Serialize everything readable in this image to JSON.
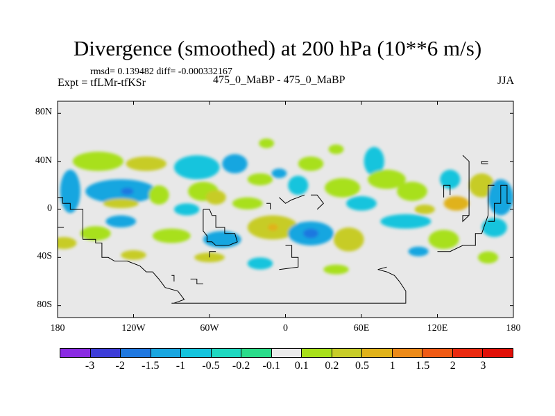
{
  "chart_data": {
    "type": "heatmap",
    "title": "Divergence (smoothed) at 200 hPa (10**6 m/s)",
    "stats": "rmsd= 0.139482 diff= -0.000332167",
    "left_label": "Expt = tfLMr-tfKSr",
    "center_label": "475_0_MaBP - 475_0_MaBP",
    "right_label": "JJA",
    "x_range": [
      -180,
      180
    ],
    "y_range": [
      -90,
      90
    ],
    "x_ticks": [
      {
        "value": -180,
        "label": "180"
      },
      {
        "value": -120,
        "label": "120W"
      },
      {
        "value": -60,
        "label": "60W"
      },
      {
        "value": 0,
        "label": "0"
      },
      {
        "value": 60,
        "label": "60E"
      },
      {
        "value": 120,
        "label": "120E"
      },
      {
        "value": 180,
        "label": "180"
      }
    ],
    "y_ticks": [
      {
        "value": 80,
        "label": "80N"
      },
      {
        "value": 40,
        "label": "40N"
      },
      {
        "value": 0,
        "label": "0"
      },
      {
        "value": -40,
        "label": "40S"
      },
      {
        "value": -80,
        "label": "80S"
      }
    ],
    "background_color": "#e8e8e8",
    "colorbar": {
      "labels": [
        "-3",
        "-2",
        "-1.5",
        "-1",
        "-0.5",
        "-0.2",
        "-0.1",
        "0.1",
        "0.2",
        "0.5",
        "1",
        "1.5",
        "2",
        "3"
      ],
      "colors": [
        "#8a2be2",
        "#3d3dd8",
        "#1f78e0",
        "#19a6e0",
        "#14c4dd",
        "#1ed8c0",
        "#2adc8a",
        "#ebebeb",
        "#a8e01a",
        "#c7cc28",
        "#e0b21a",
        "#ec8a18",
        "#ef5a14",
        "#ea2a10",
        "#e01008"
      ]
    },
    "features": [
      {
        "lon": -170,
        "lat": 15,
        "rlon": 8,
        "rlat": 18,
        "cls": 3
      },
      {
        "lon": -175,
        "lat": -28,
        "rlon": 10,
        "rlat": 5,
        "cls": 9
      },
      {
        "lon": -150,
        "lat": -20,
        "rlon": 12,
        "rlat": 6,
        "cls": 8
      },
      {
        "lon": -148,
        "lat": 40,
        "rlon": 20,
        "rlat": 8,
        "cls": 8
      },
      {
        "lon": -130,
        "lat": 15,
        "rlon": 28,
        "rlat": 10,
        "cls": 3
      },
      {
        "lon": -125,
        "lat": 15,
        "rlon": 5,
        "rlat": 3,
        "cls": 2
      },
      {
        "lon": -130,
        "lat": -10,
        "rlon": 12,
        "rlat": 5,
        "cls": 3
      },
      {
        "lon": -110,
        "lat": 38,
        "rlon": 16,
        "rlat": 6,
        "cls": 9
      },
      {
        "lon": -100,
        "lat": 12,
        "rlon": 8,
        "rlat": 8,
        "cls": 8
      },
      {
        "lon": -90,
        "lat": -22,
        "rlon": 15,
        "rlat": 6,
        "cls": 8
      },
      {
        "lon": -70,
        "lat": 35,
        "rlon": 18,
        "rlat": 10,
        "cls": 4
      },
      {
        "lon": -65,
        "lat": 15,
        "rlon": 12,
        "rlat": 8,
        "cls": 8
      },
      {
        "lon": -55,
        "lat": 10,
        "rlon": 8,
        "rlat": 6,
        "cls": 9
      },
      {
        "lon": -78,
        "lat": 0,
        "rlon": 10,
        "rlat": 5,
        "cls": 4
      },
      {
        "lon": -40,
        "lat": 38,
        "rlon": 10,
        "rlat": 8,
        "cls": 3
      },
      {
        "lon": -30,
        "lat": 5,
        "rlon": 12,
        "rlat": 5,
        "cls": 8
      },
      {
        "lon": -20,
        "lat": 25,
        "rlon": 10,
        "rlat": 5,
        "cls": 8
      },
      {
        "lon": -50,
        "lat": -25,
        "rlon": 15,
        "rlat": 7,
        "cls": 3
      },
      {
        "lon": -10,
        "lat": -15,
        "rlon": 20,
        "rlat": 10,
        "cls": 9
      },
      {
        "lon": -10,
        "lat": -15,
        "rlon": 4,
        "rlat": 3,
        "cls": 10
      },
      {
        "lon": -20,
        "lat": -45,
        "rlon": 10,
        "rlat": 5,
        "cls": 4
      },
      {
        "lon": 10,
        "lat": 20,
        "rlon": 8,
        "rlat": 8,
        "cls": 4
      },
      {
        "lon": 20,
        "lat": -20,
        "rlon": 18,
        "rlat": 10,
        "cls": 3
      },
      {
        "lon": 20,
        "lat": -20,
        "rlon": 6,
        "rlat": 4,
        "cls": 2
      },
      {
        "lon": 20,
        "lat": 38,
        "rlon": 10,
        "rlat": 6,
        "cls": 8
      },
      {
        "lon": 45,
        "lat": 18,
        "rlon": 14,
        "rlat": 8,
        "cls": 8
      },
      {
        "lon": 50,
        "lat": -25,
        "rlon": 12,
        "rlat": 10,
        "cls": 9
      },
      {
        "lon": 60,
        "lat": 5,
        "rlon": 12,
        "rlat": 6,
        "cls": 4
      },
      {
        "lon": 70,
        "lat": 40,
        "rlon": 8,
        "rlat": 12,
        "cls": 4
      },
      {
        "lon": 80,
        "lat": 25,
        "rlon": 15,
        "rlat": 8,
        "cls": 8
      },
      {
        "lon": 95,
        "lat": -10,
        "rlon": 20,
        "rlat": 6,
        "cls": 4
      },
      {
        "lon": 100,
        "lat": 15,
        "rlon": 12,
        "rlat": 8,
        "cls": 8
      },
      {
        "lon": 110,
        "lat": 0,
        "rlon": 8,
        "rlat": 4,
        "cls": 9
      },
      {
        "lon": 125,
        "lat": -25,
        "rlon": 12,
        "rlat": 8,
        "cls": 8
      },
      {
        "lon": 130,
        "lat": 25,
        "rlon": 8,
        "rlat": 8,
        "cls": 4
      },
      {
        "lon": 135,
        "lat": 5,
        "rlon": 10,
        "rlat": 6,
        "cls": 10
      },
      {
        "lon": 155,
        "lat": 20,
        "rlon": 10,
        "rlat": 10,
        "cls": 9
      },
      {
        "lon": 170,
        "lat": 10,
        "rlon": 10,
        "rlat": 15,
        "cls": 3
      },
      {
        "lon": 165,
        "lat": -15,
        "rlon": 10,
        "rlat": 8,
        "cls": 4
      },
      {
        "lon": 160,
        "lat": -40,
        "rlon": 8,
        "rlat": 5,
        "cls": 8
      },
      {
        "lon": 40,
        "lat": -50,
        "rlon": 10,
        "rlat": 4,
        "cls": 8
      },
      {
        "lon": -60,
        "lat": -40,
        "rlon": 12,
        "rlat": 4,
        "cls": 9
      },
      {
        "lon": -120,
        "lat": -38,
        "rlon": 10,
        "rlat": 4,
        "cls": 9
      },
      {
        "lon": -15,
        "lat": 55,
        "rlon": 6,
        "rlat": 4,
        "cls": 8
      },
      {
        "lon": 40,
        "lat": 50,
        "rlon": 6,
        "rlat": 4,
        "cls": 8
      },
      {
        "lon": -130,
        "lat": 5,
        "rlon": 14,
        "rlat": 4,
        "cls": 9
      },
      {
        "lon": -5,
        "lat": 30,
        "rlon": 6,
        "rlat": 4,
        "cls": 3
      },
      {
        "lon": 105,
        "lat": -35,
        "rlon": 8,
        "rlat": 4,
        "cls": 3
      }
    ],
    "coastlines": [
      [
        [
          -180,
          10
        ],
        [
          -176,
          10
        ],
        [
          -176,
          5
        ],
        [
          -170,
          5
        ],
        [
          -170,
          0
        ],
        [
          -160,
          0
        ],
        [
          -160,
          -25
        ],
        [
          -150,
          -25
        ],
        [
          -150,
          -28
        ],
        [
          -145,
          -28
        ],
        [
          -145,
          -40
        ],
        [
          -140,
          -40
        ],
        [
          -135,
          -43
        ],
        [
          -125,
          -43
        ],
        [
          -115,
          -47
        ],
        [
          -110,
          -52
        ],
        [
          -105,
          -52
        ],
        [
          -100,
          -58
        ],
        [
          -95,
          -65
        ],
        [
          -85,
          -68
        ],
        [
          -80,
          -75
        ],
        [
          -88,
          -78
        ]
      ],
      [
        [
          -90,
          -78
        ],
        [
          95,
          -78
        ],
        [
          95,
          -68
        ],
        [
          90,
          -60
        ],
        [
          86,
          -55
        ],
        [
          80,
          -52
        ],
        [
          73,
          -50
        ]
      ],
      [
        [
          73,
          -50
        ],
        [
          80,
          -48
        ]
      ],
      [
        [
          -65,
          0
        ],
        [
          -60,
          0
        ],
        [
          -58,
          -5
        ],
        [
          -55,
          -5
        ],
        [
          -55,
          -15
        ],
        [
          -48,
          -15
        ],
        [
          -48,
          -20
        ],
        [
          -40,
          -20
        ],
        [
          -38,
          -27
        ],
        [
          -45,
          -30
        ],
        [
          -55,
          -30
        ],
        [
          -58,
          -27
        ],
        [
          -62,
          -27
        ],
        [
          -62,
          -22
        ],
        [
          -65,
          -18
        ],
        [
          -65,
          -5
        ],
        [
          -65,
          0
        ]
      ],
      [
        [
          -60,
          -40
        ],
        [
          -60,
          -35
        ],
        [
          -55,
          -35
        ]
      ],
      [
        [
          0,
          -30
        ],
        [
          5,
          -30
        ],
        [
          5,
          -40
        ],
        [
          10,
          -40
        ],
        [
          10,
          -48
        ],
        [
          -5,
          -50
        ]
      ],
      [
        [
          -5,
          10
        ],
        [
          0,
          5
        ],
        [
          5,
          8
        ],
        [
          10,
          10
        ],
        [
          15,
          12
        ]
      ],
      [
        [
          -15,
          5
        ],
        [
          -12,
          5
        ],
        [
          -12,
          0
        ]
      ],
      [
        [
          20,
          12
        ],
        [
          25,
          12
        ],
        [
          30,
          5
        ],
        [
          25,
          0
        ]
      ],
      [
        [
          140,
          45
        ],
        [
          145,
          40
        ],
        [
          145,
          -5
        ],
        [
          140,
          -10
        ],
        [
          140,
          -5
        ],
        [
          145,
          -5
        ]
      ],
      [
        [
          130,
          12
        ],
        [
          130,
          20
        ],
        [
          125,
          20
        ],
        [
          125,
          10
        ]
      ],
      [
        [
          160,
          38
        ],
        [
          155,
          38
        ],
        [
          155,
          40
        ],
        [
          160,
          40
        ]
      ],
      [
        [
          160,
          -10
        ],
        [
          165,
          -10
        ],
        [
          165,
          5
        ],
        [
          170,
          5
        ],
        [
          170,
          20
        ],
        [
          175,
          20
        ],
        [
          175,
          5
        ],
        [
          178,
          5
        ]
      ],
      [
        [
          120,
          -35
        ],
        [
          130,
          -35
        ],
        [
          140,
          -30
        ],
        [
          150,
          -30
        ],
        [
          150,
          -20
        ],
        [
          155,
          -20
        ],
        [
          160,
          -5
        ],
        [
          160,
          20
        ],
        [
          165,
          20
        ]
      ],
      [
        [
          -180,
          -15
        ],
        [
          -175,
          -15
        ]
      ],
      [
        [
          -90,
          -55
        ],
        [
          -88,
          -55
        ],
        [
          -88,
          -60
        ]
      ],
      [
        [
          -75,
          -58
        ],
        [
          -70,
          -58
        ],
        [
          -70,
          -62
        ],
        [
          -65,
          -62
        ]
      ]
    ]
  }
}
